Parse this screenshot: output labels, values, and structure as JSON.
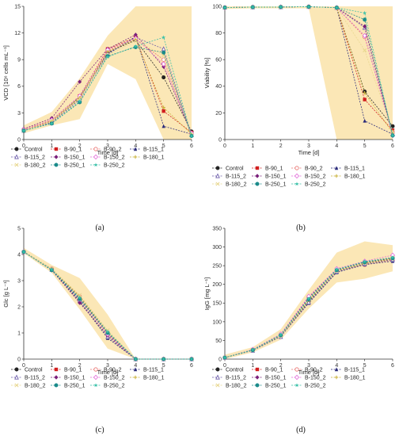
{
  "colors": {
    "band": "#fbe7b6",
    "axis": "#333333"
  },
  "chart_data": [
    {
      "type": "line",
      "panel_label": "(a)",
      "xlabel": "Time [d]",
      "ylabel": "VCD [10⁶ cells mL⁻¹]",
      "xlim": [
        0,
        6
      ],
      "ylim": [
        0,
        15
      ],
      "x_ticks": [
        "0",
        "1",
        "2",
        "3",
        "4",
        "5",
        "6"
      ],
      "y_ticks": [
        "0",
        "3",
        "6",
        "9",
        "12",
        "15"
      ],
      "band": {
        "x": [
          0,
          1,
          2,
          3,
          4,
          5,
          6
        ],
        "lower": [
          0.7,
          1.6,
          2.3,
          8.5,
          6.8,
          0,
          0
        ],
        "upper": [
          1.6,
          3.1,
          6.9,
          11.7,
          15,
          15,
          15
        ]
      },
      "legend_rows": [
        [
          "Control",
          "B-90_1",
          "B-90_2",
          "B-115_1"
        ],
        [
          "B-115_2",
          "B-150_1",
          "B-150_2",
          "B-180_1"
        ],
        [
          "B-180_2",
          "B-250_1",
          "B-250_2"
        ]
      ],
      "series": [
        {
          "name": "Control",
          "color": "#222222",
          "marker": "circle-filled",
          "dash": "2,1.5",
          "values": [
            1.0,
            2.0,
            4.8,
            9.8,
            11.2,
            7.0,
            0.9
          ]
        },
        {
          "name": "B-90_1",
          "color": "#d11f1f",
          "marker": "square-filled",
          "dash": "2,1.5",
          "values": [
            1.1,
            2.2,
            4.9,
            10.2,
            11.5,
            3.2,
            0.8
          ]
        },
        {
          "name": "B-90_2",
          "color": "#e9716e",
          "marker": "circle-open",
          "dash": "2,1.5",
          "values": [
            1.1,
            2.1,
            4.7,
            10.0,
            11.3,
            9.0,
            0.7
          ]
        },
        {
          "name": "B-115_1",
          "color": "#2a2a7a",
          "marker": "triangle-filled",
          "dash": "2,1.5",
          "values": [
            1.0,
            1.9,
            4.6,
            9.6,
            11.6,
            1.5,
            0.6
          ]
        },
        {
          "name": "B-115_2",
          "color": "#6a5aa8",
          "marker": "triangle-open",
          "dash": "2,1.5",
          "values": [
            1.0,
            1.9,
            4.5,
            9.7,
            11.5,
            10.2,
            0.5
          ]
        },
        {
          "name": "B-150_1",
          "color": "#7a1f7a",
          "marker": "diamond-filled",
          "dash": "2,1.5",
          "values": [
            1.2,
            2.4,
            6.5,
            10.2,
            11.8,
            8.2,
            0.6
          ]
        },
        {
          "name": "B-150_2",
          "color": "#e26ad8",
          "marker": "diamond-open",
          "dash": "2,1.5",
          "values": [
            1.1,
            2.2,
            4.9,
            10.1,
            11.4,
            8.5,
            0.7
          ]
        },
        {
          "name": "B-180_1",
          "color": "#c9b037",
          "marker": "plus",
          "dash": "2,1.5",
          "values": [
            1.0,
            2.1,
            4.7,
            9.9,
            11.3,
            3.6,
            0.6
          ]
        },
        {
          "name": "B-180_2",
          "color": "#e8d78e",
          "marker": "x",
          "dash": "2,1.5",
          "values": [
            1.0,
            2.0,
            4.6,
            9.5,
            11.1,
            9.5,
            0.5
          ]
        },
        {
          "name": "B-250_1",
          "color": "#1a8a8a",
          "marker": "circle-filled",
          "dash": "2,1.5",
          "values": [
            1.0,
            1.8,
            4.2,
            9.4,
            10.4,
            9.8,
            0.4
          ]
        },
        {
          "name": "B-250_2",
          "color": "#38c0a8",
          "marker": "star",
          "dash": "2,1.5",
          "values": [
            1.0,
            1.8,
            4.3,
            9.3,
            10.5,
            11.5,
            0.4
          ]
        }
      ]
    },
    {
      "type": "line",
      "panel_label": "(b)",
      "xlabel": "Time [d]",
      "ylabel": "Viability [%]",
      "xlim": [
        0,
        6
      ],
      "ylim": [
        0,
        100
      ],
      "x_ticks": [
        "0",
        "1",
        "2",
        "3",
        "4",
        "5",
        "6"
      ],
      "y_ticks": [
        "0",
        "20",
        "40",
        "60",
        "80",
        "100"
      ],
      "band": {
        "x": [
          0,
          1,
          2,
          3,
          4,
          5,
          6
        ],
        "lower": [
          98,
          98.5,
          98.5,
          98.5,
          0,
          0,
          0
        ],
        "upper": [
          100,
          100,
          100,
          100,
          100,
          100,
          100
        ]
      },
      "legend_rows": [
        [
          "Control",
          "B-90_1",
          "B-90_2",
          "B-115_1"
        ],
        [
          "B-115_2",
          "B-150_1",
          "B-150_2",
          "B-180_1"
        ],
        [
          "B-180_2",
          "B-250_1",
          "B-250_2"
        ]
      ],
      "series": [
        {
          "name": "Control",
          "color": "#222222",
          "marker": "circle-filled",
          "dash": "2,1.5",
          "values": [
            99.1,
            99.4,
            99.5,
            99.7,
            99.0,
            36,
            10
          ]
        },
        {
          "name": "B-90_1",
          "color": "#d11f1f",
          "marker": "square-filled",
          "dash": "2,1.5",
          "values": [
            99.1,
            99.4,
            99.5,
            99.7,
            99.0,
            30,
            7
          ]
        },
        {
          "name": "B-90_2",
          "color": "#e9716e",
          "marker": "circle-open",
          "dash": "2,1.5",
          "values": [
            99.1,
            99.4,
            99.5,
            99.7,
            99.0,
            77,
            5
          ]
        },
        {
          "name": "B-115_1",
          "color": "#2a2a7a",
          "marker": "triangle-filled",
          "dash": "2,1.5",
          "values": [
            99.1,
            99.4,
            99.5,
            99.7,
            99.0,
            14,
            4
          ]
        },
        {
          "name": "B-115_2",
          "color": "#6a5aa8",
          "marker": "triangle-open",
          "dash": "2,1.5",
          "values": [
            99.1,
            99.4,
            99.5,
            99.7,
            99.0,
            84,
            4
          ]
        },
        {
          "name": "B-150_1",
          "color": "#7a1f7a",
          "marker": "diamond-filled",
          "dash": "2,1.5",
          "values": [
            99.1,
            99.4,
            99.5,
            99.7,
            99.0,
            85,
            3
          ]
        },
        {
          "name": "B-150_2",
          "color": "#e26ad8",
          "marker": "diamond-open",
          "dash": "2,1.5",
          "values": [
            99.1,
            99.4,
            99.5,
            99.7,
            99.0,
            78,
            3
          ]
        },
        {
          "name": "B-180_1",
          "color": "#c9b037",
          "marker": "plus",
          "dash": "2,1.5",
          "values": [
            99.1,
            99.4,
            99.5,
            99.7,
            99.0,
            35,
            5
          ]
        },
        {
          "name": "B-180_2",
          "color": "#e8d78e",
          "marker": "x",
          "dash": "2,1.5",
          "values": [
            99.1,
            99.4,
            99.5,
            99.7,
            99.0,
            67,
            6
          ]
        },
        {
          "name": "B-250_1",
          "color": "#1a8a8a",
          "marker": "circle-filled",
          "dash": "2,1.5",
          "values": [
            99.1,
            99.4,
            99.5,
            99.7,
            99.0,
            90,
            3
          ]
        },
        {
          "name": "B-250_2",
          "color": "#38c0a8",
          "marker": "star",
          "dash": "2,1.5",
          "values": [
            99.1,
            99.4,
            99.5,
            99.7,
            99.0,
            95,
            3
          ]
        }
      ]
    },
    {
      "type": "line",
      "panel_label": "(c)",
      "xlabel": "Time [d]",
      "ylabel": "Glc [g L⁻¹]",
      "xlim": [
        0,
        6
      ],
      "ylim": [
        0,
        5
      ],
      "x_ticks": [
        "0",
        "1",
        "2",
        "3",
        "4",
        "5",
        "6"
      ],
      "y_ticks": [
        "0",
        "1",
        "2",
        "3",
        "4",
        "5"
      ],
      "band": {
        "x": [
          0,
          1,
          2,
          3,
          4,
          5,
          6
        ],
        "lower": [
          4.05,
          3.3,
          1.9,
          0.4,
          0,
          0,
          0
        ],
        "upper": [
          4.25,
          3.6,
          3.1,
          1.7,
          0,
          0,
          0
        ]
      },
      "legend_rows": [
        [
          "Control",
          "B-90_1",
          "B-90_2",
          "B-115_1"
        ],
        [
          "B-115_2",
          "B-150_1",
          "B-150_2",
          "B-180_1"
        ],
        [
          "B-180_2",
          "B-250_1",
          "B-250_2"
        ]
      ],
      "series": [
        {
          "name": "Control",
          "color": "#222222",
          "marker": "circle-filled",
          "dash": "2,1.5",
          "values": [
            4.1,
            3.45,
            2.3,
            0.95,
            0,
            0,
            0
          ]
        },
        {
          "name": "B-90_1",
          "color": "#d11f1f",
          "marker": "square-filled",
          "dash": "2,1.5",
          "values": [
            4.1,
            3.45,
            2.35,
            1.0,
            0,
            0,
            0
          ]
        },
        {
          "name": "B-90_2",
          "color": "#e9716e",
          "marker": "circle-open",
          "dash": "2,1.5",
          "values": [
            4.1,
            3.45,
            2.4,
            1.0,
            0,
            0,
            0
          ]
        },
        {
          "name": "B-115_1",
          "color": "#2a2a7a",
          "marker": "triangle-filled",
          "dash": "2,1.5",
          "values": [
            4.1,
            3.42,
            2.2,
            0.8,
            0,
            0,
            0
          ]
        },
        {
          "name": "B-115_2",
          "color": "#6a5aa8",
          "marker": "triangle-open",
          "dash": "2,1.5",
          "values": [
            4.1,
            3.42,
            2.25,
            0.85,
            0,
            0,
            0
          ]
        },
        {
          "name": "B-150_1",
          "color": "#7a1f7a",
          "marker": "diamond-filled",
          "dash": "2,1.5",
          "values": [
            4.1,
            3.4,
            2.15,
            0.9,
            0,
            0,
            0
          ]
        },
        {
          "name": "B-150_2",
          "color": "#e26ad8",
          "marker": "diamond-open",
          "dash": "2,1.5",
          "values": [
            4.1,
            3.43,
            2.3,
            0.95,
            0,
            0,
            0
          ]
        },
        {
          "name": "B-180_1",
          "color": "#c9b037",
          "marker": "plus",
          "dash": "2,1.5",
          "values": [
            4.1,
            3.45,
            2.4,
            1.05,
            0,
            0,
            0
          ]
        },
        {
          "name": "B-180_2",
          "color": "#e8d78e",
          "marker": "x",
          "dash": "2,1.5",
          "values": [
            4.1,
            3.45,
            2.45,
            1.1,
            0,
            0,
            0
          ]
        },
        {
          "name": "B-250_1",
          "color": "#1a8a8a",
          "marker": "circle-filled",
          "dash": "2,1.5",
          "values": [
            4.1,
            3.4,
            2.3,
            1.0,
            0,
            0,
            0
          ]
        },
        {
          "name": "B-250_2",
          "color": "#38c0a8",
          "marker": "star",
          "dash": "2,1.5",
          "values": [
            4.1,
            3.42,
            2.35,
            1.05,
            0,
            0,
            0
          ]
        }
      ]
    },
    {
      "type": "line",
      "panel_label": "(d)",
      "xlabel": "Time [d]",
      "ylabel": "IgG [mg L⁻¹]",
      "xlim": [
        0,
        6
      ],
      "ylim": [
        0,
        350
      ],
      "x_ticks": [
        "0",
        "1",
        "2",
        "3",
        "4",
        "5",
        "6"
      ],
      "y_ticks": [
        "0",
        "50",
        "100",
        "150",
        "200",
        "250",
        "300",
        "350"
      ],
      "band": {
        "x": [
          0,
          1,
          2,
          3,
          4,
          5,
          6
        ],
        "lower": [
          0,
          18,
          52,
          135,
          205,
          215,
          235
        ],
        "upper": [
          12,
          32,
          80,
          185,
          285,
          315,
          305
        ]
      },
      "legend_rows": [
        [
          "Control",
          "B-90_1",
          "B-90_2",
          "B-115_1"
        ],
        [
          "B-115_2",
          "B-150_1",
          "B-150_2",
          "B-180_1"
        ],
        [
          "B-180_2",
          "B-250_1",
          "B-250_2"
        ]
      ],
      "series": [
        {
          "name": "Control",
          "color": "#222222",
          "marker": "circle-filled",
          "dash": "2,1.5",
          "values": [
            4,
            24,
            62,
            155,
            236,
            255,
            268
          ]
        },
        {
          "name": "B-90_1",
          "color": "#d11f1f",
          "marker": "square-filled",
          "dash": "2,1.5",
          "values": [
            4,
            25,
            64,
            160,
            238,
            257,
            270
          ]
        },
        {
          "name": "B-90_2",
          "color": "#e9716e",
          "marker": "circle-open",
          "dash": "2,1.5",
          "values": [
            4,
            24,
            63,
            158,
            235,
            252,
            265
          ]
        },
        {
          "name": "B-115_1",
          "color": "#2a2a7a",
          "marker": "triangle-filled",
          "dash": "2,1.5",
          "values": [
            4,
            24,
            61,
            150,
            232,
            253,
            262
          ]
        },
        {
          "name": "B-115_2",
          "color": "#6a5aa8",
          "marker": "triangle-open",
          "dash": "2,1.5",
          "values": [
            4,
            23,
            60,
            152,
            234,
            255,
            266
          ]
        },
        {
          "name": "B-150_1",
          "color": "#7a1f7a",
          "marker": "diamond-filled",
          "dash": "2,1.5",
          "values": [
            4,
            25,
            66,
            165,
            240,
            260,
            272
          ]
        },
        {
          "name": "B-150_2",
          "color": "#e26ad8",
          "marker": "diamond-open",
          "dash": "2,1.5",
          "values": [
            4,
            26,
            67,
            168,
            242,
            262,
            278
          ]
        },
        {
          "name": "B-180_1",
          "color": "#c9b037",
          "marker": "plus",
          "dash": "2,1.5",
          "values": [
            4,
            24,
            62,
            157,
            236,
            256,
            268
          ]
        },
        {
          "name": "B-180_2",
          "color": "#e8d78e",
          "marker": "x",
          "dash": "2,1.5",
          "values": [
            4,
            24,
            63,
            159,
            237,
            258,
            271
          ]
        },
        {
          "name": "B-250_1",
          "color": "#1a8a8a",
          "marker": "circle-filled",
          "dash": "2,1.5",
          "values": [
            4,
            24,
            64,
            160,
            238,
            259,
            270
          ]
        },
        {
          "name": "B-250_2",
          "color": "#38c0a8",
          "marker": "star",
          "dash": "2,1.5",
          "values": [
            4,
            25,
            65,
            162,
            240,
            261,
            272
          ]
        }
      ]
    }
  ]
}
